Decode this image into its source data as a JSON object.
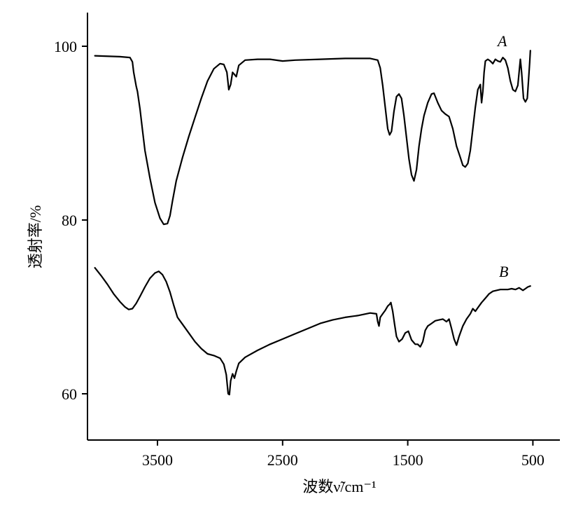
{
  "chart_data": {
    "type": "line",
    "title": "",
    "xlabel": "波数ν̃/cm⁻¹",
    "ylabel": "透射率/%",
    "x_reversed": true,
    "xlim": [
      4000,
      400
    ],
    "ylim": [
      55,
      103
    ],
    "x_ticks": [
      3500,
      2500,
      1500,
      500
    ],
    "x_tick_labels": [
      "3500",
      "2500",
      "1500",
      "500"
    ],
    "y_ticks": [
      60,
      80,
      100
    ],
    "y_tick_labels": [
      "60",
      "80",
      "100"
    ],
    "grid": false,
    "series": [
      {
        "name": "A",
        "points": [
          [
            4000,
            98.9
          ],
          [
            3800,
            98.8
          ],
          [
            3720,
            98.7
          ],
          [
            3700,
            98.2
          ],
          [
            3690,
            97.0
          ],
          [
            3670,
            95.4
          ],
          [
            3660,
            94.8
          ],
          [
            3640,
            92.8
          ],
          [
            3620,
            90.4
          ],
          [
            3600,
            88.0
          ],
          [
            3560,
            84.8
          ],
          [
            3520,
            82.0
          ],
          [
            3480,
            80.2
          ],
          [
            3450,
            79.5
          ],
          [
            3420,
            79.6
          ],
          [
            3400,
            80.5
          ],
          [
            3380,
            82.2
          ],
          [
            3350,
            84.5
          ],
          [
            3300,
            87.2
          ],
          [
            3250,
            89.6
          ],
          [
            3200,
            91.8
          ],
          [
            3150,
            94.0
          ],
          [
            3100,
            96.0
          ],
          [
            3050,
            97.4
          ],
          [
            3000,
            98.0
          ],
          [
            2970,
            97.9
          ],
          [
            2945,
            97.0
          ],
          [
            2930,
            95.0
          ],
          [
            2915,
            95.6
          ],
          [
            2900,
            97.0
          ],
          [
            2870,
            96.5
          ],
          [
            2850,
            97.8
          ],
          [
            2800,
            98.4
          ],
          [
            2700,
            98.5
          ],
          [
            2600,
            98.5
          ],
          [
            2500,
            98.3
          ],
          [
            2400,
            98.4
          ],
          [
            2200,
            98.5
          ],
          [
            2000,
            98.6
          ],
          [
            1800,
            98.6
          ],
          [
            1740,
            98.4
          ],
          [
            1720,
            97.5
          ],
          [
            1700,
            95.5
          ],
          [
            1680,
            93.0
          ],
          [
            1660,
            90.5
          ],
          [
            1645,
            89.8
          ],
          [
            1630,
            90.2
          ],
          [
            1610,
            92.5
          ],
          [
            1590,
            94.2
          ],
          [
            1570,
            94.5
          ],
          [
            1550,
            94.0
          ],
          [
            1530,
            92.0
          ],
          [
            1510,
            89.5
          ],
          [
            1490,
            87.0
          ],
          [
            1470,
            85.2
          ],
          [
            1450,
            84.5
          ],
          [
            1430,
            85.8
          ],
          [
            1410,
            88.5
          ],
          [
            1390,
            90.5
          ],
          [
            1370,
            92.0
          ],
          [
            1340,
            93.5
          ],
          [
            1310,
            94.5
          ],
          [
            1290,
            94.6
          ],
          [
            1260,
            93.5
          ],
          [
            1230,
            92.6
          ],
          [
            1200,
            92.2
          ],
          [
            1170,
            91.9
          ],
          [
            1140,
            90.5
          ],
          [
            1110,
            88.5
          ],
          [
            1080,
            87.2
          ],
          [
            1060,
            86.3
          ],
          [
            1040,
            86.1
          ],
          [
            1020,
            86.5
          ],
          [
            1000,
            88.0
          ],
          [
            980,
            90.5
          ],
          [
            960,
            93.0
          ],
          [
            940,
            95.0
          ],
          [
            920,
            95.6
          ],
          [
            910,
            93.5
          ],
          [
            900,
            94.8
          ],
          [
            890,
            97.0
          ],
          [
            880,
            98.3
          ],
          [
            860,
            98.5
          ],
          [
            840,
            98.3
          ],
          [
            820,
            98.0
          ],
          [
            800,
            98.5
          ],
          [
            780,
            98.3
          ],
          [
            760,
            98.2
          ],
          [
            740,
            98.7
          ],
          [
            720,
            98.4
          ],
          [
            700,
            97.5
          ],
          [
            680,
            96.0
          ],
          [
            660,
            95.0
          ],
          [
            640,
            94.8
          ],
          [
            620,
            95.5
          ],
          [
            600,
            98.5
          ],
          [
            590,
            97.0
          ],
          [
            575,
            94.0
          ],
          [
            560,
            93.6
          ],
          [
            545,
            94.0
          ],
          [
            535,
            96.0
          ],
          [
            525,
            98.2
          ],
          [
            520,
            99.5
          ]
        ]
      },
      {
        "name": "B",
        "points": [
          [
            4000,
            74.5
          ],
          [
            3950,
            73.6
          ],
          [
            3900,
            72.6
          ],
          [
            3850,
            71.5
          ],
          [
            3800,
            70.6
          ],
          [
            3760,
            70.0
          ],
          [
            3730,
            69.7
          ],
          [
            3700,
            69.8
          ],
          [
            3670,
            70.4
          ],
          [
            3640,
            71.2
          ],
          [
            3600,
            72.3
          ],
          [
            3560,
            73.3
          ],
          [
            3520,
            73.9
          ],
          [
            3490,
            74.1
          ],
          [
            3460,
            73.7
          ],
          [
            3430,
            72.9
          ],
          [
            3400,
            71.7
          ],
          [
            3370,
            70.2
          ],
          [
            3340,
            68.8
          ],
          [
            3300,
            68.0
          ],
          [
            3250,
            67.0
          ],
          [
            3200,
            66.0
          ],
          [
            3150,
            65.2
          ],
          [
            3100,
            64.6
          ],
          [
            3050,
            64.4
          ],
          [
            3000,
            64.1
          ],
          [
            2970,
            63.4
          ],
          [
            2950,
            62.2
          ],
          [
            2935,
            60.0
          ],
          [
            2925,
            59.9
          ],
          [
            2915,
            61.5
          ],
          [
            2900,
            62.3
          ],
          [
            2885,
            61.8
          ],
          [
            2870,
            62.6
          ],
          [
            2850,
            63.5
          ],
          [
            2800,
            64.2
          ],
          [
            2700,
            65.0
          ],
          [
            2600,
            65.7
          ],
          [
            2500,
            66.3
          ],
          [
            2400,
            66.9
          ],
          [
            2300,
            67.5
          ],
          [
            2200,
            68.1
          ],
          [
            2100,
            68.5
          ],
          [
            2000,
            68.8
          ],
          [
            1900,
            69.0
          ],
          [
            1800,
            69.3
          ],
          [
            1750,
            69.2
          ],
          [
            1740,
            68.3
          ],
          [
            1730,
            67.8
          ],
          [
            1720,
            68.8
          ],
          [
            1700,
            69.2
          ],
          [
            1680,
            69.6
          ],
          [
            1660,
            70.1
          ],
          [
            1645,
            70.3
          ],
          [
            1635,
            70.5
          ],
          [
            1620,
            69.5
          ],
          [
            1605,
            68.0
          ],
          [
            1590,
            66.6
          ],
          [
            1570,
            66.0
          ],
          [
            1545,
            66.3
          ],
          [
            1520,
            67.0
          ],
          [
            1495,
            67.2
          ],
          [
            1470,
            66.2
          ],
          [
            1440,
            65.7
          ],
          [
            1420,
            65.7
          ],
          [
            1400,
            65.4
          ],
          [
            1380,
            66.0
          ],
          [
            1360,
            67.3
          ],
          [
            1340,
            67.8
          ],
          [
            1310,
            68.1
          ],
          [
            1280,
            68.4
          ],
          [
            1250,
            68.5
          ],
          [
            1220,
            68.6
          ],
          [
            1190,
            68.3
          ],
          [
            1170,
            68.6
          ],
          [
            1150,
            67.5
          ],
          [
            1130,
            66.3
          ],
          [
            1110,
            65.6
          ],
          [
            1090,
            66.6
          ],
          [
            1060,
            67.8
          ],
          [
            1030,
            68.6
          ],
          [
            1000,
            69.2
          ],
          [
            980,
            69.8
          ],
          [
            960,
            69.5
          ],
          [
            940,
            69.9
          ],
          [
            910,
            70.5
          ],
          [
            880,
            71.0
          ],
          [
            850,
            71.5
          ],
          [
            820,
            71.8
          ],
          [
            790,
            71.9
          ],
          [
            760,
            72.0
          ],
          [
            730,
            72.0
          ],
          [
            700,
            72.0
          ],
          [
            670,
            72.1
          ],
          [
            640,
            72.0
          ],
          [
            610,
            72.2
          ],
          [
            580,
            71.9
          ],
          [
            560,
            72.1
          ],
          [
            540,
            72.3
          ],
          [
            520,
            72.4
          ]
        ]
      }
    ]
  }
}
